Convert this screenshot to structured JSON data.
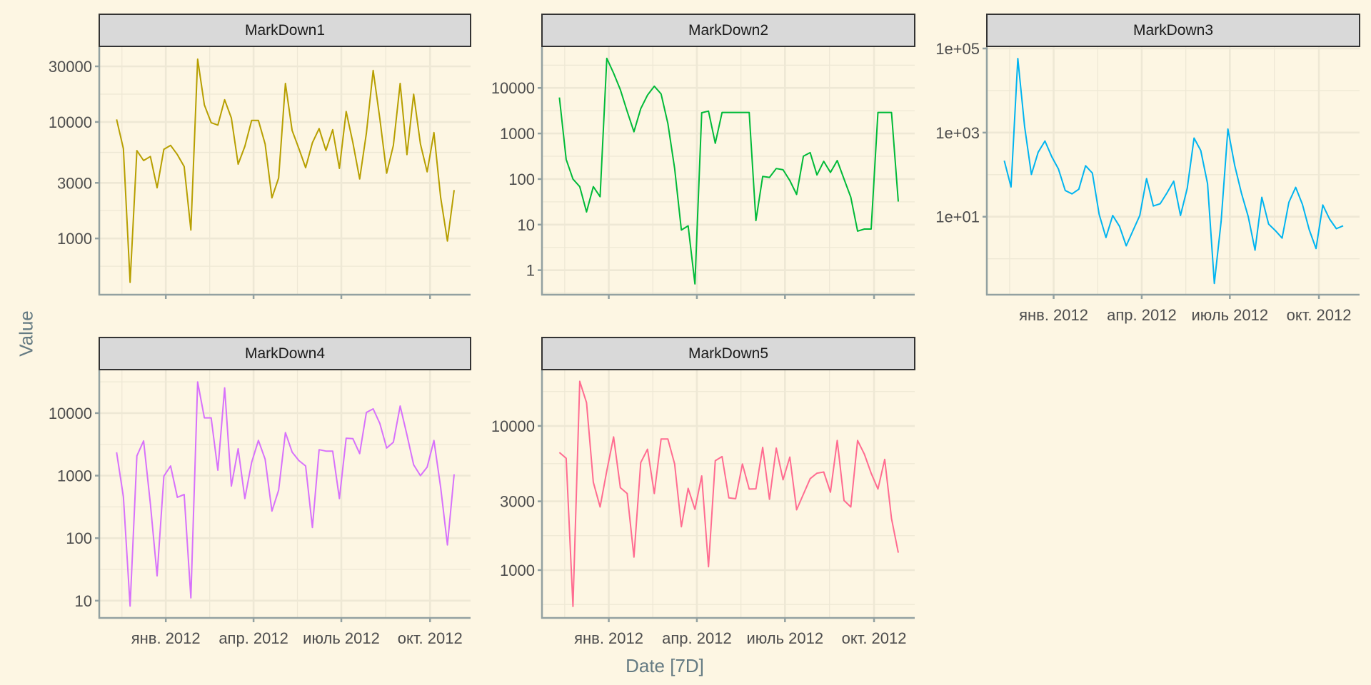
{
  "chart_data": {
    "type": "line",
    "xlabel": "Date [7D]",
    "ylabel": "Value",
    "x_start": "2011-11-11",
    "x_step_days": 7,
    "x_domain": [
      "2011-10-24",
      "2012-11-12"
    ],
    "x_ticks": [
      {
        "date": "2012-01-01",
        "label": "янв. 2012"
      },
      {
        "date": "2012-04-01",
        "label": "апр. 2012"
      },
      {
        "date": "2012-07-01",
        "label": "июль 2012"
      },
      {
        "date": "2012-10-01",
        "label": "окт. 2012"
      }
    ],
    "y_scale": "log10",
    "grid": true,
    "panels": [
      {
        "name": "MarkDown1",
        "color": "#B79F00",
        "ylim": [
          329,
          43900
        ],
        "y_breaks": [
          1000,
          3000,
          10000,
          30000
        ],
        "y_labels": [
          "1000",
          "3000",
          "10000",
          "30000"
        ],
        "values": [
          10500,
          5900,
          420,
          5670,
          4660,
          5050,
          2720,
          5830,
          6300,
          5240,
          4140,
          1180,
          34600,
          14000,
          9860,
          9400,
          15500,
          10800,
          4340,
          6170,
          10300,
          10300,
          6460,
          2230,
          3300,
          21400,
          8450,
          5900,
          4050,
          6620,
          8770,
          5700,
          8570,
          3990,
          12300,
          6620,
          3240,
          8000,
          27700,
          10600,
          3630,
          6300,
          21400,
          5240,
          17300,
          6460,
          3730,
          8100,
          2250,
          950,
          2600
        ]
      },
      {
        "name": "MarkDown2",
        "color": "#00BA38",
        "ylim": [
          0.29,
          78700
        ],
        "y_breaks": [
          1,
          10,
          100,
          1000,
          10000
        ],
        "y_labels": [
          "1",
          "10",
          "100",
          "1000",
          "10000"
        ],
        "values": [
          6170,
          270,
          100,
          68,
          19,
          68,
          41,
          44600,
          21100,
          9100,
          3070,
          1090,
          3500,
          6960,
          10900,
          7400,
          1660,
          170,
          7.6,
          9.4,
          0.5,
          2850,
          3100,
          610,
          2900,
          2900,
          2900,
          2900,
          2900,
          12.3,
          114,
          109,
          170,
          160,
          93,
          46,
          318,
          380,
          123,
          245,
          140,
          255,
          100,
          40,
          7.2,
          8,
          8,
          2900,
          2900,
          2900,
          32
        ]
      },
      {
        "name": "MarkDown3",
        "color": "#00B4F0",
        "ylim": [
          0.14,
          108000
        ],
        "y_breaks": [
          10,
          1000,
          100000
        ],
        "y_labels": [
          "1e+01",
          "1e+03",
          "1e+05"
        ],
        "values": [
          216,
          51,
          57800,
          1390,
          101,
          342,
          632,
          270,
          136,
          42,
          35,
          45,
          163,
          109,
          11.4,
          3.2,
          10.7,
          5.9,
          2.03,
          4.7,
          10.7,
          81,
          18,
          20.3,
          36.7,
          70,
          10.7,
          48,
          741,
          375,
          61,
          0.26,
          7.7,
          1220,
          167,
          36,
          10,
          1.6,
          29,
          6.7,
          4.7,
          3.1,
          22,
          50,
          19.6,
          4.9,
          1.75,
          19,
          8.8,
          5.2,
          6.1
        ]
      },
      {
        "name": "MarkDown4",
        "color": "#D771FB",
        "ylim": [
          5.3,
          48300
        ],
        "y_breaks": [
          10,
          100,
          1000,
          10000
        ],
        "y_labels": [
          "10",
          "100",
          "1000",
          "10000"
        ],
        "values": [
          2360,
          459,
          8.2,
          2070,
          3590,
          353,
          25,
          980,
          1430,
          450,
          500,
          11.1,
          31500,
          8390,
          8390,
          1220,
          25300,
          680,
          2690,
          430,
          1630,
          3660,
          1830,
          271,
          586,
          4880,
          2380,
          1740,
          1430,
          148,
          2600,
          2470,
          2470,
          430,
          3970,
          3900,
          2250,
          10260,
          11700,
          6800,
          2760,
          3430,
          13000,
          4480,
          1490,
          1000,
          1370,
          3650,
          650,
          78,
          1050
        ]
      },
      {
        "name": "MarkDown5",
        "color": "#FF6C91",
        "ylim": [
          466,
          24300
        ],
        "y_breaks": [
          1000,
          3000,
          10000
        ],
        "y_labels": [
          "1000",
          "3000",
          "10000"
        ],
        "values": [
          6550,
          5960,
          560,
          20400,
          14500,
          4070,
          2740,
          4890,
          8390,
          3730,
          3400,
          1230,
          5570,
          6890,
          3400,
          8110,
          8110,
          5440,
          2000,
          3690,
          2640,
          4500,
          1055,
          5740,
          6130,
          3170,
          3130,
          5440,
          3650,
          3660,
          7100,
          3100,
          7020,
          4230,
          6080,
          2620,
          3360,
          4310,
          4700,
          4790,
          3470,
          7930,
          3040,
          2740,
          7930,
          6370,
          4700,
          3650,
          5860,
          2280,
          1320
        ]
      }
    ]
  }
}
